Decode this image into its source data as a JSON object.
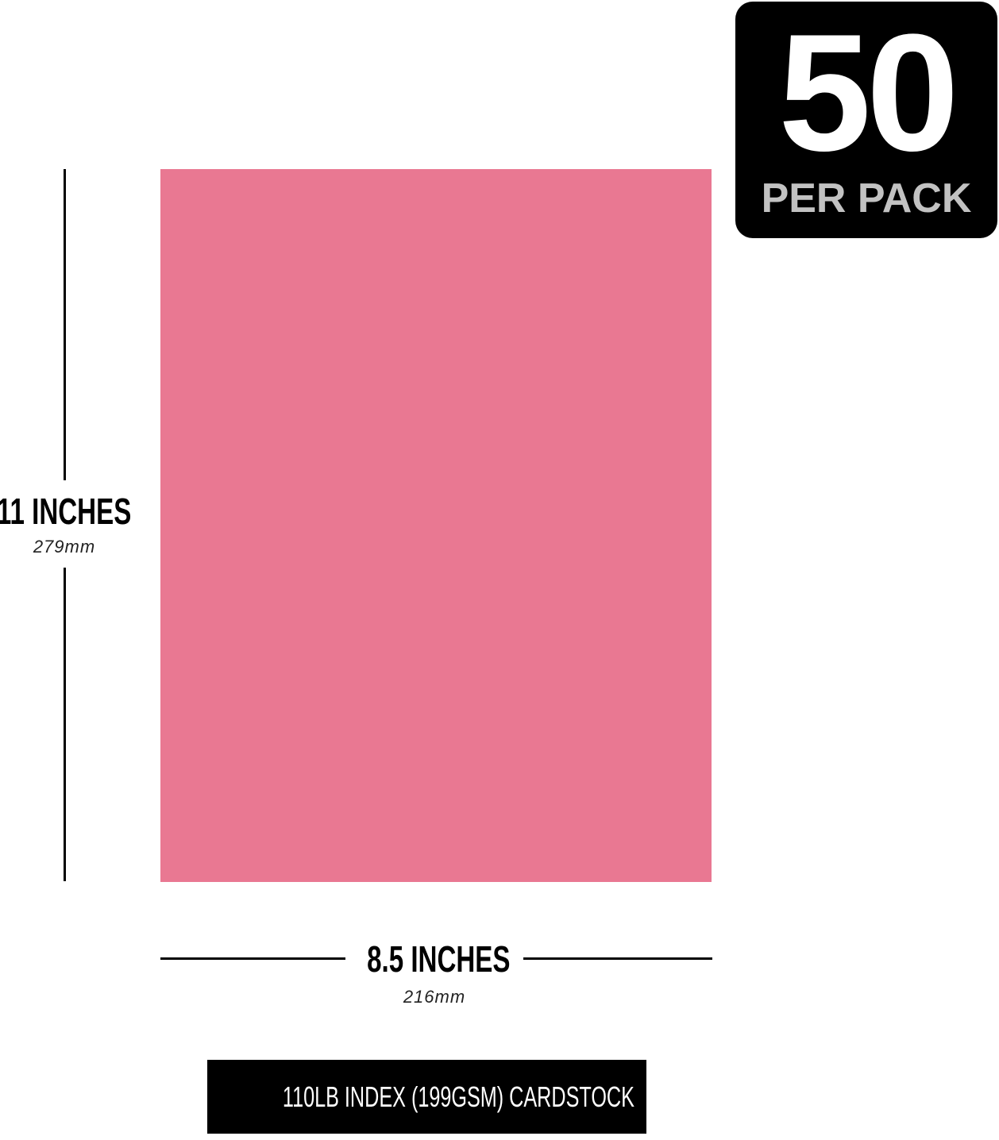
{
  "badge": {
    "count": "50",
    "label": "PER PACK"
  },
  "sheet": {
    "color": "#e97892"
  },
  "height": {
    "label": "11 INCHES",
    "metric": "279mm"
  },
  "width": {
    "label": "8.5 INCHES",
    "metric": "216mm"
  },
  "footer": {
    "label": "110LB INDEX (199GSM) CARDSTOCK"
  }
}
